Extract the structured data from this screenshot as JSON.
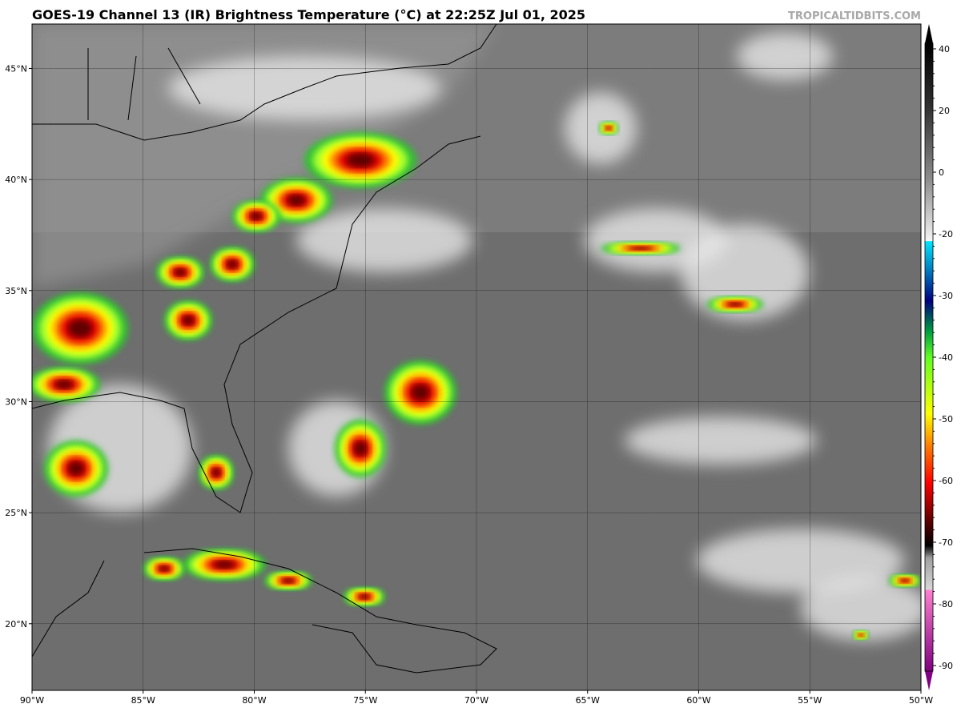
{
  "title": "GOES-19 Channel 13 (IR) Brightness Temperature (°C) at 22:25Z Jul 01, 2025",
  "watermark": "TROPICALTIDBITS.COM",
  "map": {
    "xlim": [
      -90,
      -50
    ],
    "ylim": [
      17,
      47
    ],
    "xticks": [
      {
        "value": -90,
        "label": "90°W"
      },
      {
        "value": -85,
        "label": "85°W"
      },
      {
        "value": -80,
        "label": "80°W"
      },
      {
        "value": -75,
        "label": "75°W"
      },
      {
        "value": -70,
        "label": "70°W"
      },
      {
        "value": -65,
        "label": "65°W"
      },
      {
        "value": -60,
        "label": "60°W"
      },
      {
        "value": -55,
        "label": "55°W"
      },
      {
        "value": -50,
        "label": "50°W"
      }
    ],
    "yticks": [
      {
        "value": 45,
        "label": "45°N"
      },
      {
        "value": 40,
        "label": "40°N"
      },
      {
        "value": 35,
        "label": "35°N"
      },
      {
        "value": 30,
        "label": "30°N"
      },
      {
        "value": 25,
        "label": "25°N"
      },
      {
        "value": 20,
        "label": "20°N"
      }
    ]
  },
  "colorbar": {
    "ticks": [
      40,
      20,
      0,
      -20,
      -30,
      -40,
      -50,
      -60,
      -70,
      -80,
      -90
    ]
  }
}
